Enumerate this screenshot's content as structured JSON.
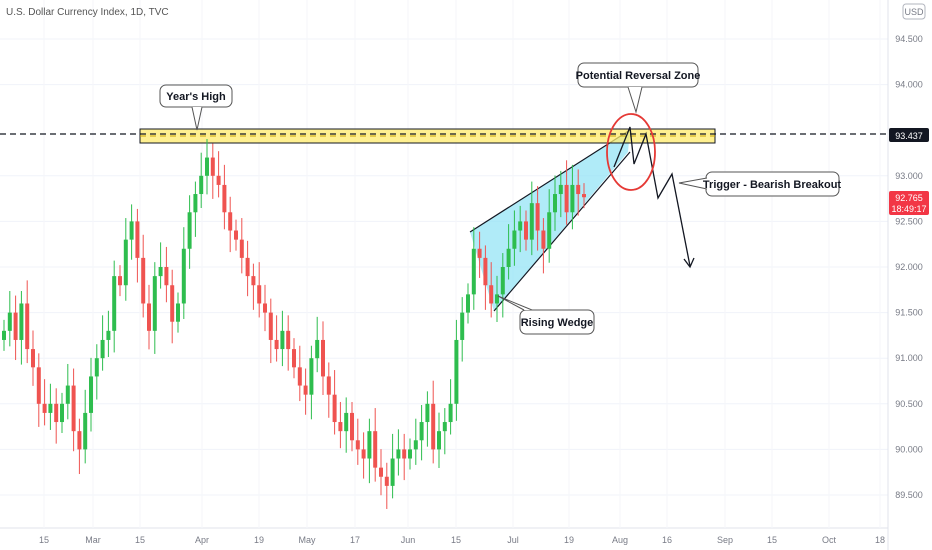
{
  "header": {
    "symbol_title": "U.S. Dollar Currency Index, 1D, TVC",
    "currency_badge": "USD"
  },
  "colors": {
    "up": "#26a69a",
    "up_bright": "#2ebd4e",
    "down": "#ef5350",
    "zone_fill": "#ffeb6b",
    "wedge_fill": "#8fe3f5",
    "last_price_bg": "#f23645",
    "level_bg": "#131722"
  },
  "price_axis": {
    "ticks": [
      "94.500",
      "94.000",
      "93.000",
      "92.500",
      "92.000",
      "91.500",
      "91.000",
      "90.500",
      "90.000",
      "89.500"
    ],
    "tick_values": [
      94.5,
      94.0,
      93.0,
      92.5,
      92.0,
      91.5,
      91.0,
      90.5,
      90.0,
      89.5
    ],
    "level_label": "93.437",
    "level_value": 93.437,
    "last_price_label": "92.765",
    "last_price_value": 92.765,
    "countdown_label": "18:49:17"
  },
  "time_axis": {
    "ticks": [
      "15",
      "Mar",
      "15",
      "Apr",
      "19",
      "May",
      "17",
      "Jun",
      "15",
      "Jul",
      "19",
      "Aug",
      "16",
      "Sep",
      "15",
      "Oct",
      "18"
    ]
  },
  "annotations": {
    "years_high": "Year's High",
    "potential_reversal_zone": "Potential Reversal Zone",
    "trigger": "Trigger - Bearish Breakout",
    "rising_wedge": "Rising Wedge"
  },
  "chart_data": {
    "type": "candlestick",
    "title": "U.S. Dollar Currency Index, 1D, TVC",
    "ylim": [
      89.3,
      94.75
    ],
    "resistance_level": 93.437,
    "last_price": 92.765,
    "closes": [
      91.3,
      91.5,
      91.2,
      91.6,
      91.1,
      90.9,
      90.5,
      90.4,
      90.5,
      90.3,
      90.5,
      90.7,
      90.2,
      90.0,
      90.4,
      90.8,
      91.0,
      91.2,
      91.3,
      91.9,
      91.8,
      92.3,
      92.5,
      92.1,
      91.6,
      91.3,
      91.9,
      92.0,
      91.8,
      91.4,
      91.6,
      92.2,
      92.6,
      92.8,
      93.0,
      93.2,
      93.0,
      92.9,
      92.6,
      92.4,
      92.3,
      92.1,
      91.9,
      91.8,
      91.6,
      91.5,
      91.2,
      91.1,
      91.3,
      91.1,
      90.9,
      90.7,
      90.6,
      91.0,
      91.2,
      90.8,
      90.6,
      90.3,
      90.2,
      90.4,
      90.1,
      90.0,
      89.9,
      90.2,
      89.8,
      89.7,
      89.6,
      89.9,
      90.0,
      89.9,
      90.0,
      90.1,
      90.3,
      90.5,
      90.0,
      90.2,
      90.3,
      90.5,
      91.2,
      91.5,
      91.7,
      92.2,
      92.1,
      91.8,
      91.6,
      91.7,
      92.0,
      92.2,
      92.4,
      92.5,
      92.3,
      92.7,
      92.4,
      92.2,
      92.6,
      92.8,
      92.9,
      92.6,
      92.9,
      92.8,
      92.765
    ],
    "wedge": {
      "upper": [
        [
          92.4,
          24
        ],
        [
          93.5,
          42
        ]
      ],
      "lower": [
        [
          91.5,
          25
        ],
        [
          93.4,
          42
        ]
      ]
    },
    "projection": [
      93.2,
      93.5,
      93.0,
      93.45,
      92.9,
      93.1,
      92.0
    ]
  }
}
